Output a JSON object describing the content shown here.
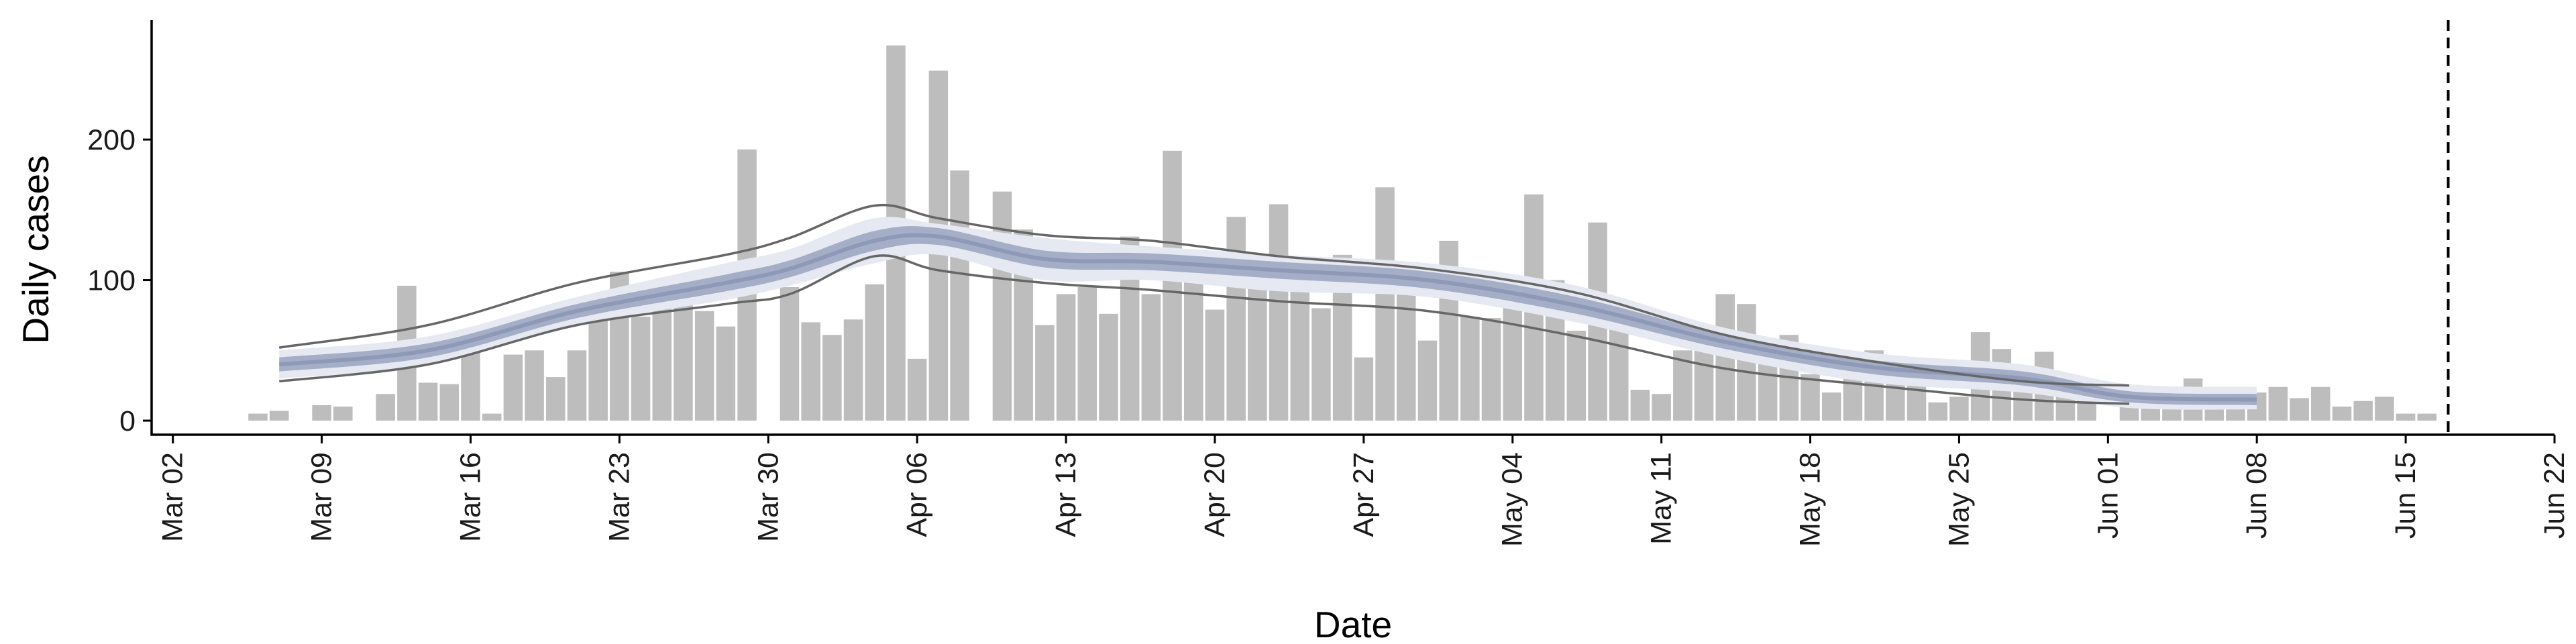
{
  "chart_data": {
    "type": "bar",
    "xlabel": "Date",
    "ylabel": "Daily cases",
    "x_scale": "date",
    "xlim": [
      "2020-03-01",
      "2020-06-22"
    ],
    "ylim": [
      -10,
      285
    ],
    "x_tick_dates": [
      "2020-03-02",
      "2020-03-09",
      "2020-03-16",
      "2020-03-23",
      "2020-03-30",
      "2020-04-06",
      "2020-04-13",
      "2020-04-20",
      "2020-04-27",
      "2020-05-04",
      "2020-05-11",
      "2020-05-18",
      "2020-05-25",
      "2020-06-01",
      "2020-06-08",
      "2020-06-15",
      "2020-06-22"
    ],
    "x_tick_labels": [
      "Mar 02",
      "Mar 09",
      "Mar 16",
      "Mar 23",
      "Mar 30",
      "Apr 06",
      "Apr 13",
      "Apr 20",
      "Apr 27",
      "May 04",
      "May 11",
      "May 18",
      "May 25",
      "Jun 01",
      "Jun 08",
      "Jun 15",
      "Jun 22"
    ],
    "y_ticks": [
      0,
      100,
      200
    ],
    "grid": false,
    "bars": {
      "start_date": "2020-03-06",
      "values": [
        5,
        7,
        0,
        11,
        10,
        0,
        19,
        96,
        27,
        26,
        56,
        5,
        47,
        50,
        31,
        50,
        71,
        106,
        74,
        91,
        88,
        78,
        67,
        193,
        0,
        95,
        70,
        61,
        72,
        97,
        267,
        44,
        249,
        178,
        0,
        163,
        136,
        68,
        90,
        95,
        76,
        131,
        90,
        192,
        103,
        79,
        145,
        114,
        154,
        110,
        80,
        118,
        45,
        166,
        90,
        57,
        128,
        74,
        73,
        85,
        161,
        100,
        64,
        141,
        82,
        22,
        19,
        50,
        51,
        90,
        83,
        58,
        61,
        33,
        20,
        44,
        50,
        45,
        33,
        13,
        17,
        63,
        51,
        33,
        49,
        33,
        20,
        0,
        20,
        24,
        18,
        30,
        23,
        15,
        20,
        24,
        16,
        24,
        10,
        14,
        17,
        5,
        5
      ],
      "color": "#bdbdbd"
    },
    "trend": {
      "start_date": "2020-03-07",
      "end_date": "2020-06-07",
      "knot_offsets_days": [
        0,
        7,
        14,
        21,
        24,
        28,
        31,
        36,
        41,
        47,
        54,
        61,
        68,
        75,
        82,
        87,
        93
      ],
      "median": [
        40,
        50,
        78,
        98,
        108,
        128,
        131,
        115,
        113,
        107,
        100,
        82,
        56,
        38,
        30,
        17,
        15
      ],
      "inner_band_lo": [
        35,
        45,
        73,
        92,
        102,
        121,
        125,
        109,
        107,
        101,
        94,
        76,
        51,
        33,
        25,
        13,
        11
      ],
      "inner_band_hi": [
        45,
        55,
        83,
        104,
        114,
        135,
        137,
        121,
        119,
        113,
        106,
        88,
        61,
        43,
        35,
        21,
        19
      ],
      "outer_band_lo": [
        30,
        40,
        68,
        86,
        96,
        112,
        118,
        100,
        100,
        92,
        88,
        70,
        45,
        27,
        20,
        9,
        8
      ],
      "outer_band_hi": [
        50,
        60,
        88,
        112,
        122,
        144,
        140,
        130,
        124,
        118,
        112,
        96,
        66,
        48,
        40,
        26,
        24
      ],
      "ci_upper": [
        52,
        68,
        98,
        118,
        130,
        153,
        144,
        132,
        128,
        117,
        108,
        91,
        61,
        42,
        28,
        25,
        null
      ],
      "ci_lower": [
        28,
        40,
        68,
        83,
        90,
        117,
        107,
        98,
        93,
        85,
        78,
        60,
        37,
        25,
        15,
        12,
        null
      ],
      "outer_band_color": "#e6e8f2",
      "inner_band_color": "#a5aec7",
      "median_color": "#8e99b8",
      "ci_line_color": "#666666"
    },
    "vline": {
      "date": "2020-06-17",
      "style": "dashed",
      "color": "#000000"
    }
  }
}
